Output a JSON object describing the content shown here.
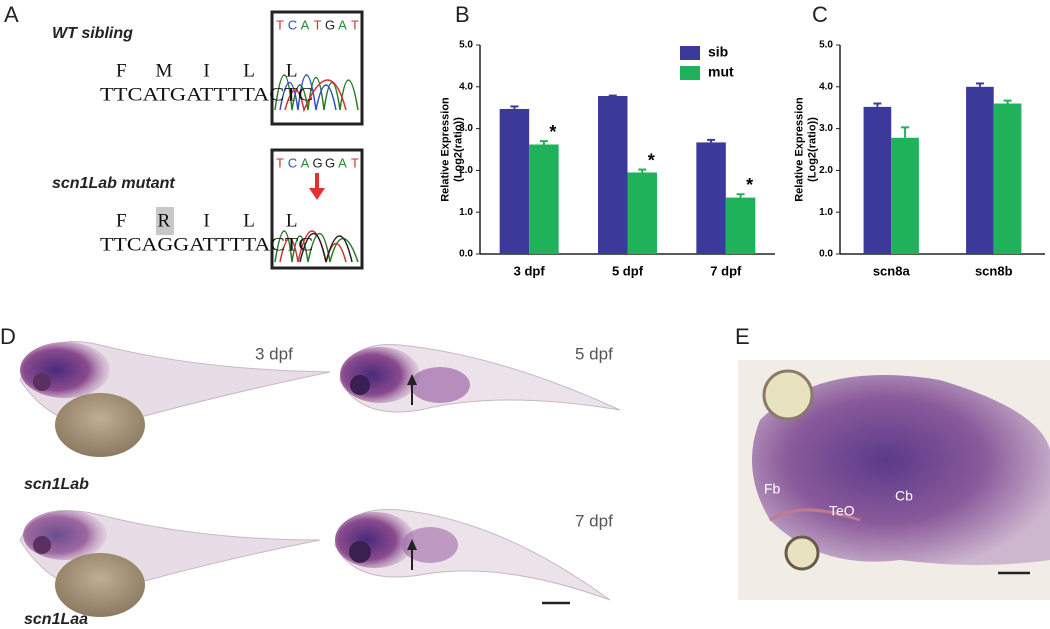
{
  "panel_labels": [
    "A",
    "B",
    "C",
    "D",
    "E"
  ],
  "panel_a": {
    "wild_type": {
      "title": "WT sibling",
      "residues": [
        "F",
        "M",
        "I",
        "L",
        "L"
      ],
      "sequence": "TTCATGATTTTACTC",
      "chromatogram": [
        "T",
        "C",
        "A",
        "T",
        "G",
        "A",
        "T"
      ]
    },
    "mutant": {
      "title": "scn1Lab mutant",
      "residues": [
        "F",
        "R",
        "I",
        "L",
        "L"
      ],
      "sequence": "TTCAGGATTTTACTC",
      "chromatogram": [
        "T",
        "C",
        "A",
        "G",
        "G",
        "A",
        "T"
      ]
    }
  },
  "chart_data": [
    {
      "type": "bar",
      "ylabel": [
        "Relative Expression",
        "(Log2(ratio))"
      ],
      "categories": [
        "3 dpf",
        "5 dpf",
        "7 dpf"
      ],
      "series": [
        {
          "name": "sib",
          "color": "#3b3a9b",
          "values": [
            3.47,
            3.78,
            2.67
          ],
          "errors": [
            0.06,
            0.01,
            0.06
          ]
        },
        {
          "name": "mut",
          "color": "#1fb25a",
          "values": [
            2.62,
            1.95,
            1.35
          ],
          "errors": [
            0.08,
            0.07,
            0.08
          ],
          "significance": [
            "*",
            "*",
            "*"
          ]
        }
      ],
      "ylim": [
        0,
        5
      ],
      "yticks": [
        {
          "value": 0,
          "label": "0.0"
        },
        {
          "value": 1,
          "label": "1.0"
        },
        {
          "value": 2,
          "label": "2.0"
        },
        {
          "value": 3,
          "label": "3.0"
        },
        {
          "value": 4,
          "label": "4.0"
        },
        {
          "value": 5,
          "label": "5.0"
        }
      ],
      "legend": "upper right"
    },
    {
      "type": "bar",
      "ylabel": [
        "Relative Expression",
        "(Log2(ratio))"
      ],
      "categories": [
        "scn8a",
        "scn8b"
      ],
      "series": [
        {
          "color": "#3b3a9b",
          "values": [
            3.52,
            4.0
          ],
          "errors": [
            0.08,
            0.08
          ]
        },
        {
          "color": "#1fb25a",
          "values": [
            2.78,
            3.6
          ],
          "errors": [
            0.25,
            0.07
          ]
        }
      ],
      "ylim": [
        0,
        5
      ],
      "yticks": [
        {
          "value": 0,
          "label": "0.0"
        },
        {
          "value": 1,
          "label": "1.0"
        },
        {
          "value": 2,
          "label": "2.0"
        },
        {
          "value": 3,
          "label": "3.0"
        },
        {
          "value": 4,
          "label": "4.0"
        },
        {
          "value": 5,
          "label": "5.0"
        }
      ]
    }
  ],
  "panel_d": {
    "stages": [
      "3 dpf",
      "5 dpf",
      "7 dpf"
    ],
    "genes": [
      "scn1Lab",
      "scn1Laa"
    ]
  },
  "panel_e": {
    "regions": [
      "Fb",
      "TeO",
      "Cb"
    ]
  }
}
